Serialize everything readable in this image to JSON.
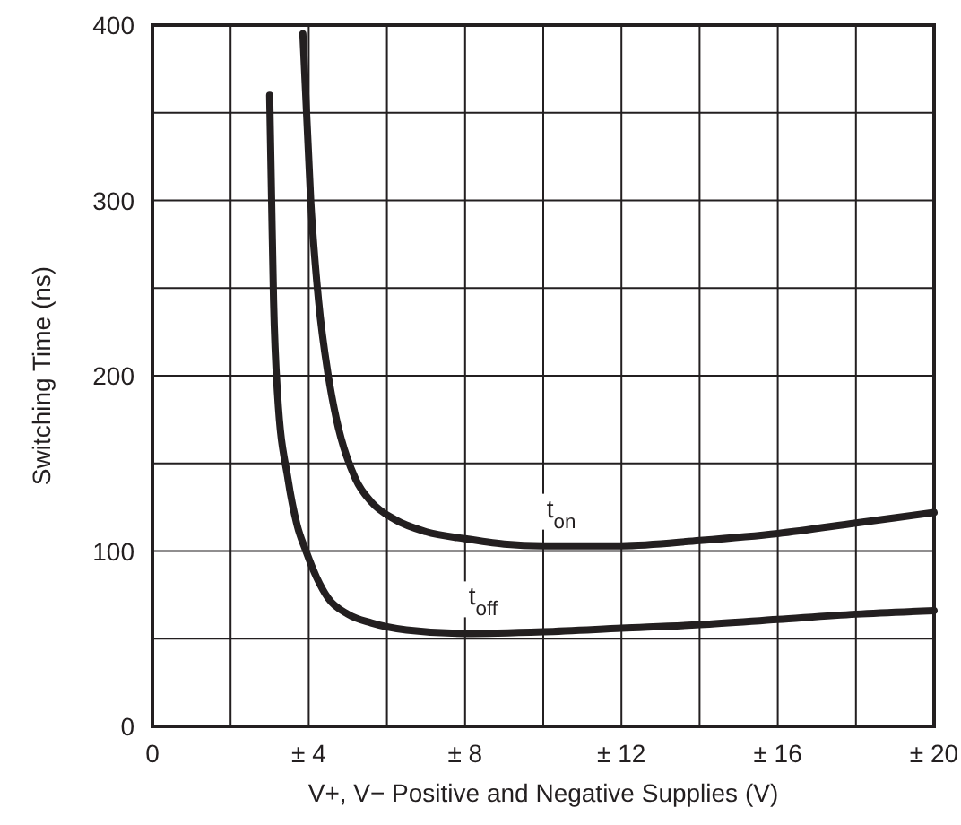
{
  "chart_data": {
    "type": "line",
    "xlabel": "V+, V− Positive and Negative Supplies (V)",
    "ylabel": "Switching Time (ns)",
    "xlim": [
      0,
      20
    ],
    "xticks": [
      0,
      {
        "value": 4,
        "label": "± 4"
      },
      {
        "value": 8,
        "label": "± 8"
      },
      {
        "value": 12,
        "label": "± 12"
      },
      {
        "value": 16,
        "label": "± 16"
      },
      {
        "value": 20,
        "label": "± 20"
      }
    ],
    "ylim": [
      0,
      400
    ],
    "yticks": [
      0,
      100,
      200,
      300,
      400
    ],
    "grid": true,
    "line_style": "solid",
    "marker": "none",
    "series": [
      {
        "name": "t$_{on}$",
        "color": "#231f20",
        "x": [
          3.85,
          4.05,
          4.25,
          4.5,
          4.7,
          5.2,
          5.6,
          6.2,
          7,
          8,
          9,
          10,
          11,
          12,
          14,
          16,
          18,
          20
        ],
        "values": [
          395,
          300,
          243,
          200,
          176,
          141,
          128,
          118,
          111,
          107,
          104,
          103,
          103,
          103,
          106,
          110,
          116,
          122
        ]
      },
      {
        "name": "t$_{off}$",
        "color": "#231f20",
        "x": [
          3,
          3.05,
          3.1,
          3.2,
          3.47,
          3.7,
          3.93,
          4.2,
          4.5,
          5,
          5.6,
          6.5,
          8,
          10,
          12,
          14,
          16,
          18,
          20
        ],
        "values": [
          360,
          300,
          243,
          190,
          141,
          115,
          100,
          85,
          73,
          64,
          59,
          55,
          53,
          54,
          56,
          58,
          61,
          64,
          66
        ]
      }
    ]
  }
}
